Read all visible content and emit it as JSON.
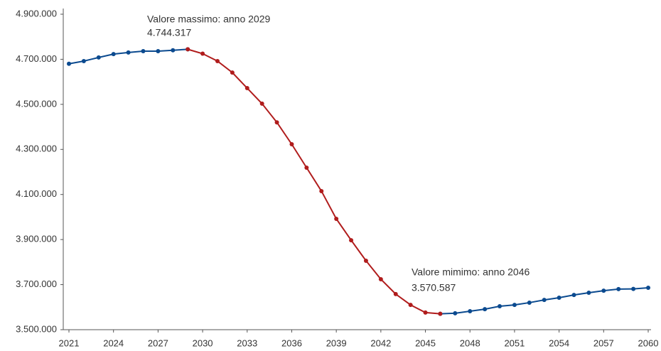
{
  "chart_data": {
    "type": "line",
    "x": [
      2021,
      2022,
      2023,
      2024,
      2025,
      2026,
      2027,
      2028,
      2029,
      2030,
      2031,
      2032,
      2033,
      2034,
      2035,
      2036,
      2037,
      2038,
      2039,
      2040,
      2041,
      2042,
      2043,
      2044,
      2045,
      2046,
      2047,
      2048,
      2049,
      2050,
      2051,
      2052,
      2053,
      2054,
      2055,
      2056,
      2057,
      2058,
      2059,
      2060
    ],
    "series": [
      {
        "color": "#0b4a8f",
        "values": [
          4680000,
          4692000,
          4708000,
          4723000,
          4730000,
          4736000,
          4736000,
          4740000,
          4744317,
          null,
          null,
          null,
          null,
          null,
          null,
          null,
          null,
          null,
          null,
          null,
          null,
          null,
          null,
          null,
          null,
          3570587,
          3573000,
          3582000,
          3591000,
          3604000,
          3610000,
          3620000,
          3632000,
          3642000,
          3654000,
          3664000,
          3673000,
          3680000,
          3681000,
          3686000
        ]
      },
      {
        "color": "#b01c1c",
        "values": [
          null,
          null,
          null,
          null,
          null,
          null,
          null,
          null,
          4744317,
          4725000,
          4692000,
          4641000,
          4572000,
          4503000,
          4420000,
          4323000,
          4219000,
          4115000,
          3992000,
          3897000,
          3806000,
          3724000,
          3658000,
          3610000,
          3576000,
          3570587,
          null,
          null,
          null,
          null,
          null,
          null,
          null,
          null,
          null,
          null,
          null,
          null,
          null,
          null
        ]
      }
    ],
    "xlim": [
      2021,
      2060
    ],
    "xticks": [
      2021,
      2024,
      2027,
      2030,
      2033,
      2036,
      2039,
      2042,
      2045,
      2048,
      2051,
      2054,
      2057,
      2060
    ],
    "ylim": [
      3500000,
      4900000
    ],
    "yticks": [
      {
        "value": 3500000,
        "label": "3.500.000"
      },
      {
        "value": 3700000,
        "label": "3.700.000"
      },
      {
        "value": 3900000,
        "label": "3.900.000"
      },
      {
        "value": 4100000,
        "label": "4.100.000"
      },
      {
        "value": 4300000,
        "label": "4.300.000"
      },
      {
        "value": 4500000,
        "label": "4.500.000"
      },
      {
        "value": 4700000,
        "label": "4.700.000"
      },
      {
        "value": 4900000,
        "label": "4.900.000"
      }
    ],
    "grid": false,
    "annotations": [
      "Valore massimo: anno 2029",
      "4.744.317",
      "Valore mimimo: anno 2046",
      "3.570.587"
    ]
  }
}
